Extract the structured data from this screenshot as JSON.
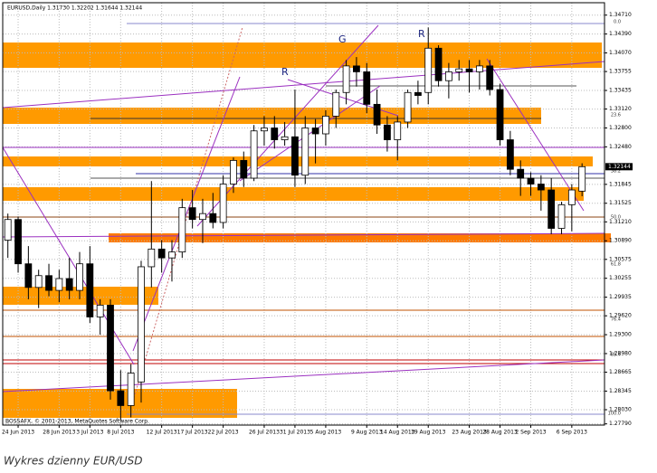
{
  "chart_data": {
    "type": "candlestick",
    "title": "EURUSD,Daily  1.31730 1.32202 1.31644 1.32144",
    "caption": "Wykres dzienny EUR/USD",
    "copyright": "BOSSAFX, © 2001-2013, MetaQuotes Software Corp.",
    "annotations": [
      "R",
      "G",
      "R"
    ],
    "fib_labels": [
      "0.0",
      "23.6",
      "38.2",
      "50.0",
      "61.8",
      "76.4",
      "85.4",
      "100.0"
    ],
    "categories": [
      null,
      "24 Jun 2013",
      null,
      null,
      null,
      "28 Jun 2013",
      null,
      null,
      "3 Jul 2013",
      null,
      null,
      "8 Jul 2013",
      null,
      null,
      null,
      "12 Jul 2013",
      null,
      null,
      "17 Jul 2013",
      null,
      null,
      "22 Jul 2013",
      null,
      null,
      null,
      "26 Jul 2013",
      null,
      null,
      "31 Jul 2013",
      null,
      null,
      "5 Aug 2013",
      null,
      null,
      null,
      "9 Aug 2013",
      null,
      null,
      "14 Aug 2013",
      null,
      null,
      "19 Aug 2013",
      null,
      null,
      null,
      "23 Aug 2013",
      null,
      null,
      "28 Aug 2013",
      null,
      null,
      "2 Sep 2013",
      null,
      null,
      null,
      "6 Sep 2013",
      null
    ],
    "open": [
      1.309,
      1.3125,
      1.305,
      1.301,
      1.303,
      1.3005,
      1.3025,
      1.3005,
      1.305,
      1.296,
      1.298,
      1.2835,
      1.281,
      1.285,
      1.3045,
      1.3075,
      1.306,
      1.307,
      1.3145,
      1.3125,
      1.3135,
      1.312,
      1.3185,
      1.3225,
      1.3195,
      1.3275,
      1.328,
      1.326,
      1.3265,
      1.32,
      1.328,
      1.327,
      1.33,
      1.334,
      1.3385,
      1.3375,
      1.332,
      1.3285,
      1.326,
      1.329,
      1.334,
      1.334,
      1.3415,
      1.336,
      1.3375,
      1.338,
      1.3375,
      1.3385,
      1.3345,
      1.326,
      1.321,
      1.3195,
      1.3185,
      1.3175,
      1.311,
      1.315,
      1.3173
    ],
    "high": [
      1.3135,
      1.313,
      1.308,
      1.304,
      1.305,
      1.304,
      1.306,
      1.307,
      1.308,
      1.299,
      1.299,
      1.287,
      1.288,
      1.3055,
      1.319,
      1.309,
      1.309,
      1.316,
      1.3175,
      1.316,
      1.317,
      1.32,
      1.323,
      1.324,
      1.3285,
      1.33,
      1.33,
      1.329,
      1.3345,
      1.33,
      1.3295,
      1.331,
      1.3345,
      1.3395,
      1.34,
      1.339,
      1.3345,
      1.33,
      1.33,
      1.3345,
      1.336,
      1.345,
      1.342,
      1.339,
      1.3395,
      1.3395,
      1.3395,
      1.3395,
      1.3355,
      1.3275,
      1.3225,
      1.3205,
      1.32,
      1.3195,
      1.3155,
      1.3185,
      1.32202
    ],
    "low": [
      1.306,
      1.3035,
      1.299,
      1.2975,
      1.2995,
      1.2985,
      1.299,
      1.299,
      1.295,
      1.293,
      1.282,
      1.2785,
      1.279,
      1.2815,
      1.301,
      1.3035,
      1.302,
      1.306,
      1.311,
      1.3085,
      1.311,
      1.311,
      1.317,
      1.318,
      1.319,
      1.325,
      1.3245,
      1.325,
      1.318,
      1.3185,
      1.322,
      1.325,
      1.328,
      1.332,
      1.335,
      1.3305,
      1.327,
      1.324,
      1.3225,
      1.328,
      1.332,
      1.332,
      1.335,
      1.333,
      1.336,
      1.334,
      1.3345,
      1.3335,
      1.325,
      1.32,
      1.3165,
      1.3165,
      1.314,
      1.31,
      1.31,
      1.3105,
      1.31644
    ],
    "close": [
      1.3125,
      1.305,
      1.301,
      1.303,
      1.3005,
      1.3025,
      1.3005,
      1.305,
      1.296,
      1.298,
      1.2835,
      1.281,
      1.2865,
      1.3045,
      1.3075,
      1.306,
      1.307,
      1.3145,
      1.3125,
      1.3135,
      1.312,
      1.3185,
      1.3225,
      1.3195,
      1.3275,
      1.328,
      1.326,
      1.3265,
      1.32,
      1.328,
      1.327,
      1.33,
      1.334,
      1.3385,
      1.3375,
      1.332,
      1.3285,
      1.326,
      1.329,
      1.334,
      1.3335,
      1.3415,
      1.336,
      1.3375,
      1.338,
      1.3375,
      1.3385,
      1.3345,
      1.326,
      1.321,
      1.3195,
      1.3185,
      1.3175,
      1.311,
      1.315,
      1.3175,
      1.32144
    ],
    "last_price": {
      "value": 1.32144,
      "label": "1.32144"
    },
    "ylim": [
      1.2777,
      1.3492
    ],
    "yticks": [
      {
        "value": 1.3471,
        "label": "1.34710"
      },
      {
        "value": 1.3439,
        "label": "1.34390"
      },
      {
        "value": 1.3407,
        "label": "1.34070"
      },
      {
        "value": 1.33755,
        "label": "1.33755"
      },
      {
        "value": 1.33435,
        "label": "1.33435"
      },
      {
        "value": 1.3312,
        "label": "1.33120"
      },
      {
        "value": 1.328,
        "label": "1.32800"
      },
      {
        "value": 1.3248,
        "label": "1.32480"
      },
      {
        "value": 1.31845,
        "label": "1.31845"
      },
      {
        "value": 1.31525,
        "label": "1.31525"
      },
      {
        "value": 1.3121,
        "label": "1.31210"
      },
      {
        "value": 1.3089,
        "label": "1.30890"
      },
      {
        "value": 1.30575,
        "label": "1.30575"
      },
      {
        "value": 1.30255,
        "label": "1.30255"
      },
      {
        "value": 1.29935,
        "label": "1.29935"
      },
      {
        "value": 1.2962,
        "label": "1.29620"
      },
      {
        "value": 1.293,
        "label": "1.29300"
      },
      {
        "value": 1.2898,
        "label": "1.28980"
      },
      {
        "value": 1.28665,
        "label": "1.28665"
      },
      {
        "value": 1.28345,
        "label": "1.28345"
      },
      {
        "value": 1.2803,
        "label": "1.28030"
      },
      {
        "value": 1.2779,
        "label": "1.27790"
      }
    ],
    "grid": true,
    "bull_color": "#ffffff",
    "bear_color": "#000000"
  }
}
